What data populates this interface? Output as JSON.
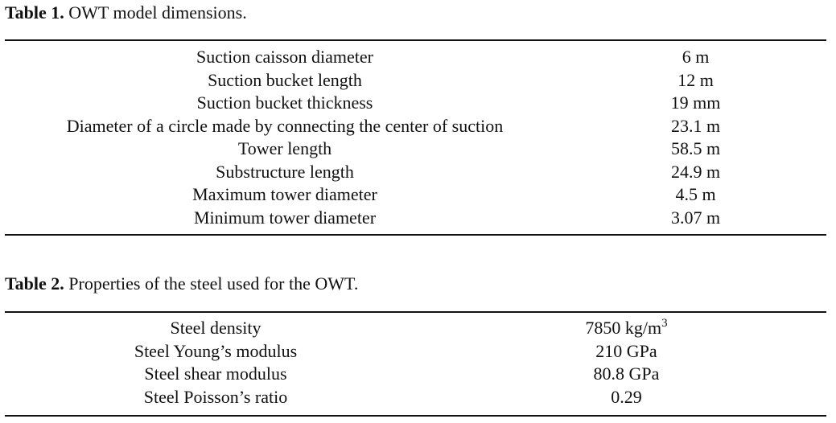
{
  "table1": {
    "caption_label": "Table 1.",
    "caption_text": "OWT model dimensions.",
    "rows": [
      {
        "property": "Suction caisson diameter",
        "value": "6 m"
      },
      {
        "property": "Suction bucket length",
        "value": "12 m"
      },
      {
        "property": "Suction bucket thickness",
        "value": "19 mm"
      },
      {
        "property": "Diameter of a circle made by connecting the center of suction",
        "value": "23.1 m"
      },
      {
        "property": "Tower length",
        "value": "58.5 m"
      },
      {
        "property": "Substructure length",
        "value": "24.9 m"
      },
      {
        "property": "Maximum tower diameter",
        "value": "4.5 m"
      },
      {
        "property": "Minimum tower diameter",
        "value": "3.07 m"
      }
    ]
  },
  "table2": {
    "caption_label": "Table 2.",
    "caption_text": "Properties of the steel used for the OWT.",
    "rows": [
      {
        "property": "Steel density",
        "value": "7850 kg/m",
        "value_sup": "3"
      },
      {
        "property": "Steel Young’s modulus",
        "value": "210 GPa"
      },
      {
        "property": "Steel shear modulus",
        "value": "80.8 GPa"
      },
      {
        "property": "Steel Poisson’s ratio",
        "value": "0.29"
      }
    ]
  }
}
